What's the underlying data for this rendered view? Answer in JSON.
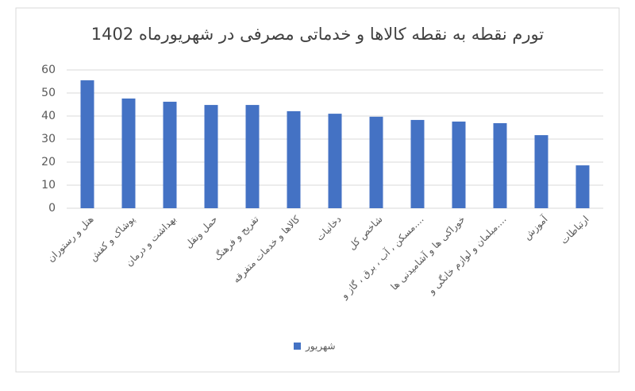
{
  "chart_data": {
    "type": "bar",
    "title": "تورم نقطه به نقطه کالاها و خدماتی مصرفی در شهریورماه 1402",
    "categories": [
      "هتل و رستوران",
      "پوشاک و کفش",
      "بهداشت و درمان",
      "حمل ونقل",
      "تفریح و فرهنگ",
      "کالاها و خدمات متفرقه",
      "دخانیات",
      "شاخص کل",
      "مسکن ، آب ، برق ، گاز و....",
      "خوراکی ها و آشامیدنی ها",
      "مبلمان و لوازم خانگی و....",
      "آموزش",
      "ارتباطات"
    ],
    "series": [
      {
        "name": "شهریور",
        "color": "#4472c4",
        "values": [
          55.5,
          47.6,
          46.2,
          44.8,
          44.8,
          42.1,
          41.0,
          39.7,
          38.3,
          37.6,
          36.9,
          31.7,
          18.6
        ]
      }
    ],
    "ylim": [
      0,
      60
    ],
    "yticks": [
      0,
      10,
      20,
      30,
      40,
      50,
      60
    ],
    "grid": true,
    "legend": "bottom"
  }
}
